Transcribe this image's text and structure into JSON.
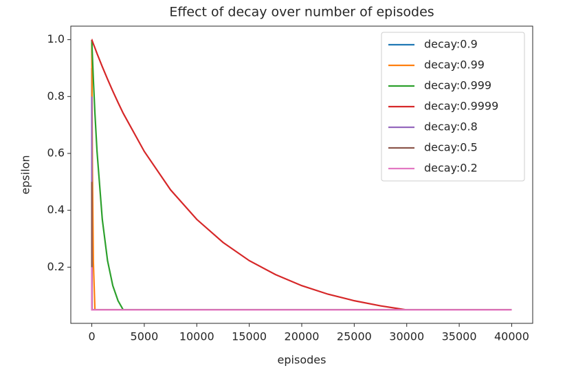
{
  "chart_data": {
    "type": "line",
    "title": "Effect of decay over number of episodes",
    "x_label": "episodes",
    "y_label": "epsilon",
    "x": [
      0,
      1,
      3,
      7,
      14,
      28,
      60,
      150,
      298,
      500,
      1000,
      1500,
      2000,
      2500,
      2995,
      5000,
      7500,
      10000,
      12500,
      15000,
      17500,
      20000,
      22500,
      25000,
      27500,
      29956,
      35000,
      40000
    ],
    "series": [
      {
        "name": "decay:0.9",
        "color": "#1f77b4",
        "values": [
          0.9,
          0.81,
          0.656,
          0.43,
          0.206,
          0.05,
          0.05,
          0.05,
          0.05,
          0.05,
          0.05,
          0.05,
          0.05,
          0.05,
          0.05,
          0.05,
          0.05,
          0.05,
          0.05,
          0.05,
          0.05,
          0.05,
          0.05,
          0.05,
          0.05,
          0.05,
          0.05,
          0.05
        ]
      },
      {
        "name": "decay:0.99",
        "color": "#ff7f0e",
        "values": [
          0.99,
          0.98,
          0.961,
          0.923,
          0.86,
          0.747,
          0.541,
          0.219,
          0.05,
          0.05,
          0.05,
          0.05,
          0.05,
          0.05,
          0.05,
          0.05,
          0.05,
          0.05,
          0.05,
          0.05,
          0.05,
          0.05,
          0.05,
          0.05,
          0.05,
          0.05,
          0.05,
          0.05
        ]
      },
      {
        "name": "decay:0.999",
        "color": "#2ca02c",
        "values": [
          0.999,
          0.998,
          0.996,
          0.992,
          0.985,
          0.971,
          0.941,
          0.86,
          0.741,
          0.606,
          0.368,
          0.223,
          0.135,
          0.082,
          0.05,
          0.05,
          0.05,
          0.05,
          0.05,
          0.05,
          0.05,
          0.05,
          0.05,
          0.05,
          0.05,
          0.05,
          0.05,
          0.05
        ]
      },
      {
        "name": "decay:0.9999",
        "color": "#d62728",
        "values": [
          1.0,
          1.0,
          1.0,
          0.999,
          0.999,
          0.997,
          0.994,
          0.985,
          0.971,
          0.951,
          0.905,
          0.861,
          0.819,
          0.779,
          0.741,
          0.607,
          0.472,
          0.368,
          0.287,
          0.223,
          0.174,
          0.135,
          0.105,
          0.082,
          0.064,
          0.05,
          0.05,
          0.05
        ]
      },
      {
        "name": "decay:0.8",
        "color": "#9467bd",
        "values": [
          0.8,
          0.64,
          0.41,
          0.168,
          0.05,
          0.05,
          0.05,
          0.05,
          0.05,
          0.05,
          0.05,
          0.05,
          0.05,
          0.05,
          0.05,
          0.05,
          0.05,
          0.05,
          0.05,
          0.05,
          0.05,
          0.05,
          0.05,
          0.05,
          0.05,
          0.05,
          0.05,
          0.05
        ]
      },
      {
        "name": "decay:0.5",
        "color": "#8c564b",
        "values": [
          0.5,
          0.25,
          0.0625,
          0.05,
          0.05,
          0.05,
          0.05,
          0.05,
          0.05,
          0.05,
          0.05,
          0.05,
          0.05,
          0.05,
          0.05,
          0.05,
          0.05,
          0.05,
          0.05,
          0.05,
          0.05,
          0.05,
          0.05,
          0.05,
          0.05,
          0.05,
          0.05,
          0.05
        ]
      },
      {
        "name": "decay:0.2",
        "color": "#e377c2",
        "values": [
          0.2,
          0.05,
          0.05,
          0.05,
          0.05,
          0.05,
          0.05,
          0.05,
          0.05,
          0.05,
          0.05,
          0.05,
          0.05,
          0.05,
          0.05,
          0.05,
          0.05,
          0.05,
          0.05,
          0.05,
          0.05,
          0.05,
          0.05,
          0.05,
          0.05,
          0.05,
          0.05,
          0.05
        ]
      }
    ],
    "xlim": [
      -2000,
      42000
    ],
    "xticks": [
      0,
      5000,
      10000,
      15000,
      20000,
      25000,
      30000,
      35000,
      40000
    ],
    "ylim": [
      0.0025,
      1.0475
    ],
    "yticks": [
      0.2,
      0.4,
      0.6,
      0.8,
      {
        "value": 1.0,
        "label": "1.0"
      }
    ],
    "grid": false,
    "legend": "upper right"
  }
}
